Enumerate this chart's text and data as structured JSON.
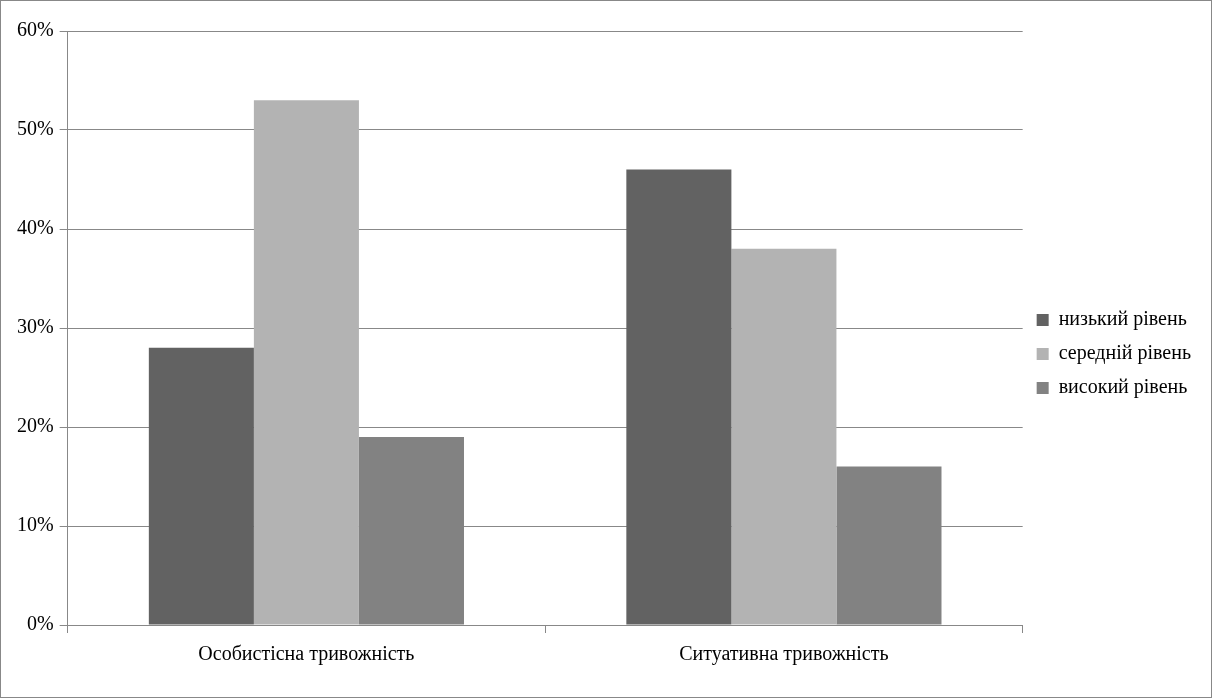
{
  "chart_data": {
    "type": "bar",
    "categories": [
      "Особистісна тривожність",
      "Ситуативна тривожність"
    ],
    "series": [
      {
        "name": "низький рівень",
        "color": "#626262",
        "values": [
          28,
          46
        ]
      },
      {
        "name": "середній рівень",
        "color": "#b3b3b3",
        "values": [
          53,
          38
        ]
      },
      {
        "name": "високий рівень",
        "color": "#828282",
        "values": [
          19,
          16
        ]
      }
    ],
    "ylim": [
      0,
      60
    ],
    "yticks": [
      {
        "value": 0,
        "label": "0%"
      },
      {
        "value": 10,
        "label": "10%"
      },
      {
        "value": 20,
        "label": "20%"
      },
      {
        "value": 30,
        "label": "30%"
      },
      {
        "value": 40,
        "label": "40%"
      },
      {
        "value": 50,
        "label": "50%"
      },
      {
        "value": 60,
        "label": "60%"
      }
    ],
    "grid": "y",
    "legend": "right"
  }
}
